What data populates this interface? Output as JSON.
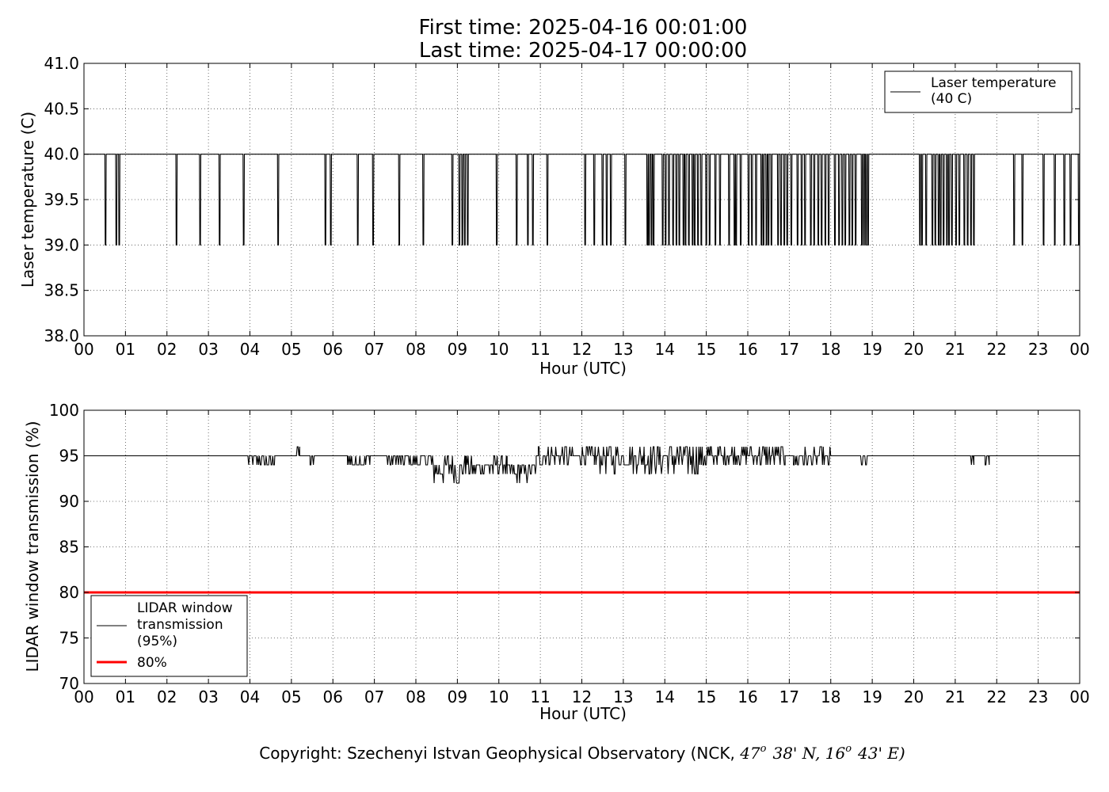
{
  "figure": {
    "title_line1": "First time: 2025-04-16 00:01:00",
    "title_line2": "Last time: 2025-04-17 00:00:00",
    "copyright_prefix": "Copyright: Szechenyi Istvan Geophysical Observatory (NCK, ",
    "copyright_lat_deg": "47",
    "copyright_lat_min": "38' N, ",
    "copyright_lon_deg": "16",
    "copyright_lon_min": "43' E)",
    "degree_mark": "o"
  },
  "chart_data": [
    {
      "type": "line",
      "xlabel": "Hour (UTC)",
      "ylabel": "Laser temperature (C)",
      "xlim": [
        0,
        24
      ],
      "ylim": [
        38.0,
        41.0
      ],
      "x_ticks": [
        "00",
        "01",
        "02",
        "03",
        "04",
        "05",
        "06",
        "07",
        "08",
        "09",
        "10",
        "11",
        "12",
        "13",
        "14",
        "15",
        "16",
        "17",
        "18",
        "19",
        "20",
        "21",
        "22",
        "23",
        "00"
      ],
      "y_ticks": [
        "38.0",
        "38.5",
        "39.0",
        "39.5",
        "40.0",
        "40.5",
        "41.0"
      ],
      "grid": true,
      "legend_placement": "top-right",
      "series": [
        {
          "name_line1": "Laser temperature",
          "name_line2": "(40 C)",
          "color": "#000000",
          "baseline": 40.0,
          "dip_value": 39.0,
          "dips_at_hour": [
            0.52,
            0.78,
            0.85,
            2.23,
            2.8,
            3.27,
            3.85,
            4.68,
            5.82,
            5.95,
            6.6,
            6.97,
            7.6,
            8.18,
            8.88,
            9.05,
            9.12,
            9.18,
            9.25,
            9.95,
            10.43,
            10.7,
            10.82,
            11.17,
            12.08,
            12.3,
            12.5,
            12.6,
            12.7,
            13.05,
            13.58,
            13.62,
            13.68,
            13.73,
            13.95,
            14.02,
            14.1,
            14.2,
            14.28,
            14.35,
            14.45,
            14.5,
            14.58,
            14.67,
            14.72,
            14.8,
            14.88,
            15.0,
            15.08,
            15.22,
            15.33,
            15.55,
            15.68,
            15.72,
            15.83,
            16.02,
            16.1,
            16.2,
            16.33,
            16.38,
            16.45,
            16.5,
            16.57,
            16.73,
            16.8,
            16.88,
            16.95,
            17.05,
            17.2,
            17.3,
            17.38,
            17.52,
            17.6,
            17.7,
            17.78,
            17.87,
            17.95,
            18.1,
            18.2,
            18.28,
            18.35,
            18.45,
            18.52,
            18.6,
            18.75,
            18.8,
            18.85,
            18.9,
            20.15,
            20.2,
            20.3,
            20.45,
            20.52,
            20.6,
            20.65,
            20.72,
            20.8,
            20.85,
            20.92,
            21.02,
            21.1,
            21.22,
            21.3,
            21.38,
            21.45,
            22.42,
            22.62,
            23.13,
            23.4,
            23.63,
            23.78,
            23.98
          ]
        }
      ]
    },
    {
      "type": "line",
      "xlabel": "Hour (UTC)",
      "ylabel": "LIDAR window transmission (%)",
      "xlim": [
        0,
        24
      ],
      "ylim": [
        70,
        100
      ],
      "x_ticks": [
        "00",
        "01",
        "02",
        "03",
        "04",
        "05",
        "06",
        "07",
        "08",
        "09",
        "10",
        "11",
        "12",
        "13",
        "14",
        "15",
        "16",
        "17",
        "18",
        "19",
        "20",
        "21",
        "22",
        "23",
        "00"
      ],
      "y_ticks": [
        "70",
        "75",
        "80",
        "85",
        "90",
        "95",
        "100"
      ],
      "grid": true,
      "legend_placement": "bottom-left",
      "series": [
        {
          "name_line1": "LIDAR window",
          "name_line2": "transmission",
          "name_line3": "(95%)",
          "color": "#000000",
          "baseline": 95,
          "segments": [
            {
              "start": 3.95,
              "end": 4.6,
              "low": 94,
              "high": 95,
              "mid": 94.5
            },
            {
              "start": 5.1,
              "end": 5.2,
              "low": 95,
              "high": 96,
              "mid": 95.5
            },
            {
              "start": 5.45,
              "end": 5.6,
              "low": 94,
              "high": 95,
              "mid": 94.5
            },
            {
              "start": 6.35,
              "end": 6.9,
              "low": 94,
              "high": 95,
              "mid": 94.5
            },
            {
              "start": 7.3,
              "end": 8.4,
              "low": 94,
              "high": 95,
              "mid": 94.5
            },
            {
              "start": 8.4,
              "end": 9.2,
              "low": 92,
              "high": 95,
              "mid": 93.6
            },
            {
              "start": 9.2,
              "end": 10.2,
              "low": 93,
              "high": 95,
              "mid": 93.8
            },
            {
              "start": 10.2,
              "end": 10.9,
              "low": 92,
              "high": 94,
              "mid": 93.2
            },
            {
              "start": 10.95,
              "end": 12.3,
              "low": 94,
              "high": 96,
              "mid": 95
            },
            {
              "start": 12.3,
              "end": 13.6,
              "low": 93,
              "high": 96,
              "mid": 94.8
            },
            {
              "start": 13.6,
              "end": 15.1,
              "low": 92,
              "high": 96,
              "mid": 94.8
            },
            {
              "start": 15.1,
              "end": 16.9,
              "low": 94,
              "high": 96,
              "mid": 95
            },
            {
              "start": 17.1,
              "end": 18.0,
              "low": 94,
              "high": 96,
              "mid": 94.7
            },
            {
              "start": 18.7,
              "end": 18.9,
              "low": 94,
              "high": 95,
              "mid": 94.5
            },
            {
              "start": 21.35,
              "end": 21.45,
              "low": 94,
              "high": 95,
              "mid": 94.5
            },
            {
              "start": 21.72,
              "end": 21.82,
              "low": 94,
              "high": 95,
              "mid": 94.5
            }
          ]
        },
        {
          "name_line1": "80%",
          "color": "#ff0000",
          "constant": 80
        }
      ]
    }
  ]
}
